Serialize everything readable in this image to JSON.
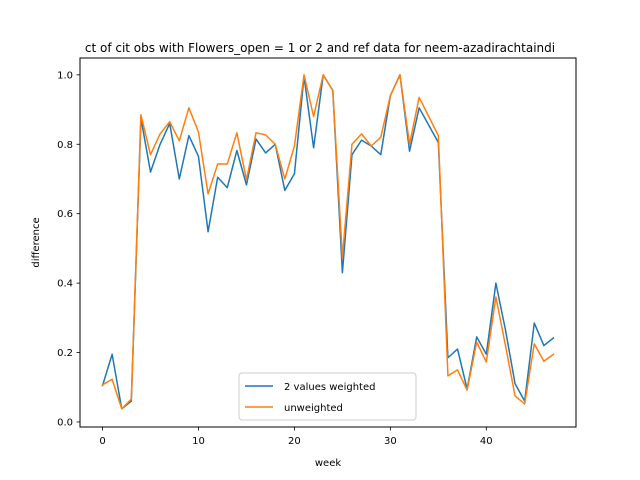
{
  "chart_data": {
    "type": "line",
    "title": "ct of cit obs with Flowers_open = 1 or 2 and ref data for neem-azadirachtaindi",
    "xlabel": "week",
    "ylabel": "difference",
    "xlim": [
      -2.35,
      49.35
    ],
    "ylim": [
      -0.0145,
      1.0485
    ],
    "xticks": [
      0,
      10,
      20,
      30,
      40
    ],
    "yticks": [
      0.0,
      0.2,
      0.4,
      0.6,
      0.8,
      1.0
    ],
    "ytick_labels": [
      "0.0",
      "0.2",
      "0.4",
      "0.6",
      "0.8",
      "1.0"
    ],
    "grid": false,
    "legend_position": "lower center",
    "x": [
      0,
      1,
      2,
      3,
      4,
      5,
      6,
      7,
      8,
      9,
      10,
      11,
      12,
      13,
      14,
      15,
      16,
      17,
      18,
      19,
      20,
      21,
      22,
      23,
      24,
      25,
      26,
      27,
      28,
      29,
      30,
      31,
      32,
      33,
      34,
      35,
      36,
      37,
      38,
      39,
      40,
      41,
      42,
      43,
      44,
      45,
      46,
      47
    ],
    "series": [
      {
        "name": "2 values weighted",
        "color": "#1f77b4",
        "values": [
          0.105,
          0.195,
          0.038,
          0.06,
          0.875,
          0.72,
          0.8,
          0.86,
          0.7,
          0.825,
          0.765,
          0.548,
          0.705,
          0.675,
          0.782,
          0.683,
          0.815,
          0.775,
          0.8,
          0.667,
          0.715,
          0.995,
          0.79,
          1.0,
          0.955,
          0.43,
          0.77,
          0.812,
          0.795,
          0.77,
          0.94,
          1.0,
          0.78,
          0.905,
          0.855,
          0.805,
          0.185,
          0.21,
          0.095,
          0.245,
          0.195,
          0.4,
          0.265,
          0.11,
          0.06,
          0.285,
          0.22,
          0.242
        ]
      },
      {
        "name": "unweighted",
        "color": "#ff7f0e",
        "values": [
          0.107,
          0.123,
          0.038,
          0.066,
          0.885,
          0.77,
          0.83,
          0.865,
          0.81,
          0.905,
          0.835,
          0.657,
          0.743,
          0.743,
          0.833,
          0.698,
          0.833,
          0.827,
          0.8,
          0.7,
          0.795,
          1.0,
          0.88,
          1.0,
          0.955,
          0.475,
          0.8,
          0.83,
          0.795,
          0.82,
          0.94,
          1.0,
          0.8,
          0.935,
          0.88,
          0.825,
          0.133,
          0.15,
          0.092,
          0.23,
          0.173,
          0.36,
          0.22,
          0.075,
          0.052,
          0.225,
          0.175,
          0.195
        ]
      }
    ]
  }
}
